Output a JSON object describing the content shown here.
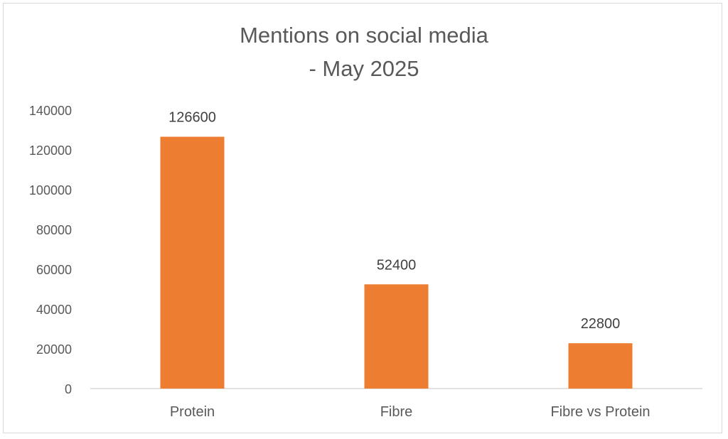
{
  "chart_data": {
    "type": "bar",
    "title": "Mentions on social media",
    "subtitle": "- May 2025",
    "categories": [
      "Protein",
      "Fibre",
      "Fibre vs Protein"
    ],
    "values": [
      126600,
      52400,
      22800
    ],
    "data_labels": [
      "126600",
      "52400",
      "22800"
    ],
    "ylim": [
      0,
      140000
    ],
    "yticks": [
      0,
      20000,
      40000,
      60000,
      80000,
      100000,
      120000,
      140000
    ],
    "ytick_labels": [
      "0",
      "20000",
      "40000",
      "60000",
      "80000",
      "100000",
      "120000",
      "140000"
    ],
    "xlabel": "",
    "ylabel": "",
    "grid": false,
    "legend": "none",
    "bar_color": "#ED7D31",
    "axis_color": "#d9d9d9",
    "text_color": "#595959"
  }
}
